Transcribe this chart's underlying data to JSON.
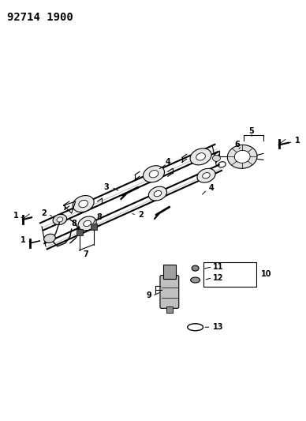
{
  "title": "92714 1900",
  "background_color": "#ffffff",
  "line_color": "#000000",
  "title_fontsize": 10,
  "title_fontweight": "bold",
  "fig_width": 3.88,
  "fig_height": 5.33,
  "dpi": 100
}
